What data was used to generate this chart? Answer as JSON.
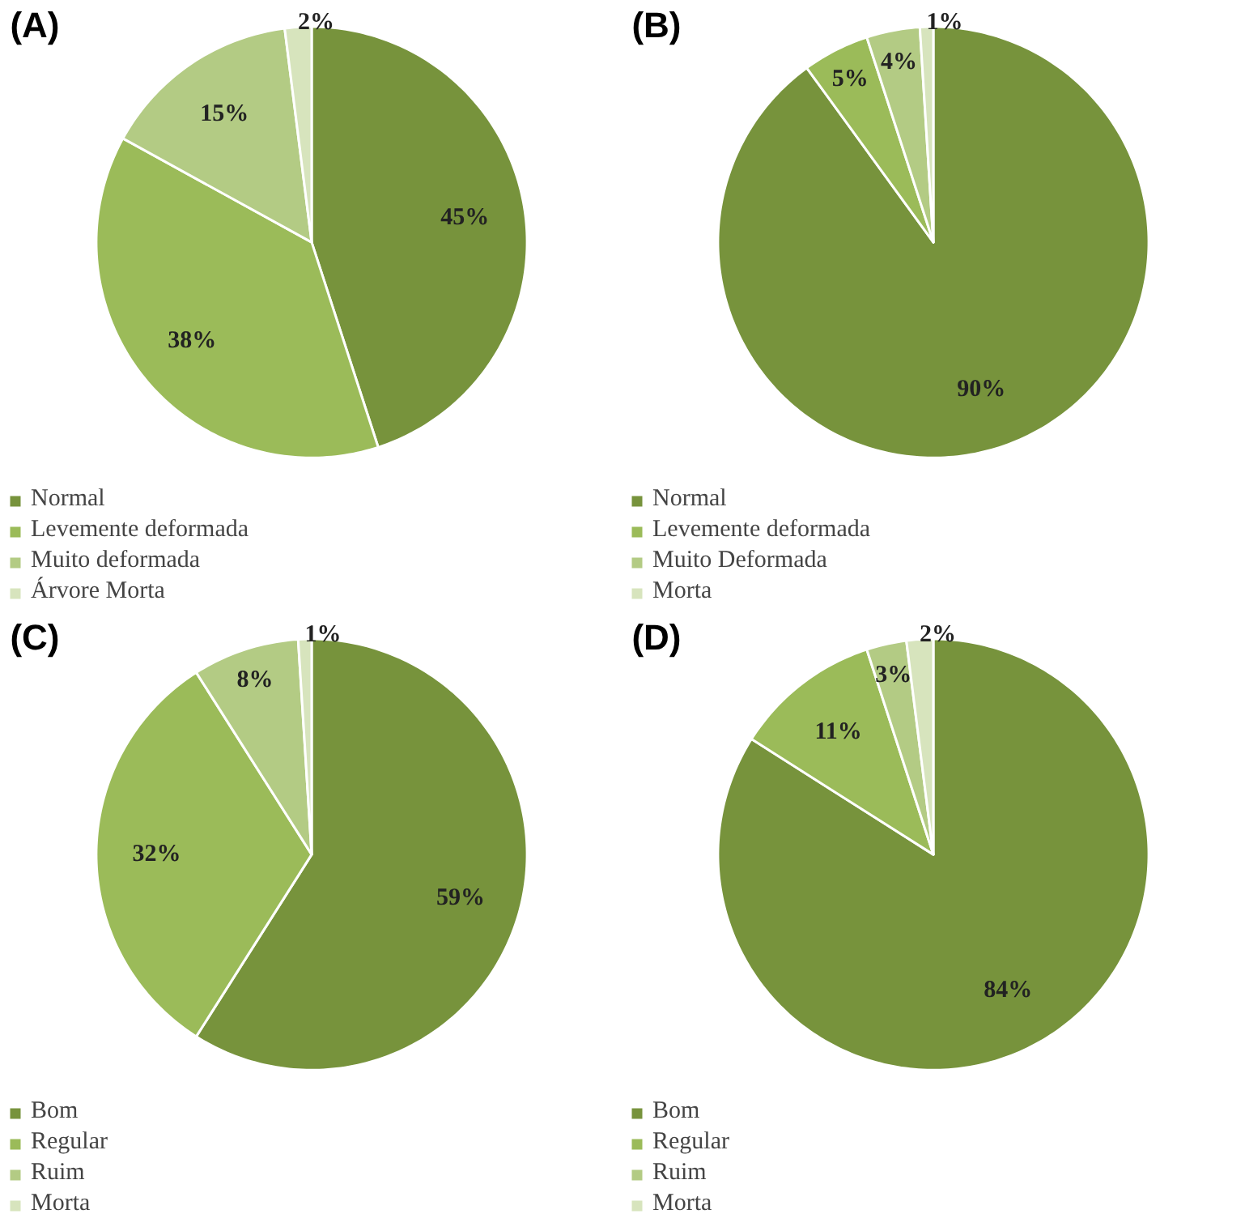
{
  "chart_data": [
    {
      "type": "pie",
      "title": "(A)",
      "categories": [
        "Normal",
        "Levemente deformada",
        "Muito deformada",
        "Árvore Morta"
      ],
      "values": [
        45,
        38,
        15,
        2
      ],
      "value_labels": [
        "45%",
        "38%",
        "15%",
        "2%"
      ],
      "colors": [
        "#77933c",
        "#9bbb59",
        "#b3cb84",
        "#d7e4bd"
      ],
      "legend": "bottom left"
    },
    {
      "type": "pie",
      "title": "(B)",
      "categories": [
        "Normal",
        "Levemente deformada",
        "Muito Deformada",
        "Morta"
      ],
      "values": [
        90,
        5,
        4,
        1
      ],
      "value_labels": [
        "90%",
        "5%",
        "4%",
        "1%"
      ],
      "colors": [
        "#77933c",
        "#9bbb59",
        "#b3cb84",
        "#d7e4bd"
      ],
      "legend": "bottom left"
    },
    {
      "type": "pie",
      "title": "(C)",
      "categories": [
        "Bom",
        "Regular",
        "Ruim",
        "Morta"
      ],
      "values": [
        59,
        32,
        8,
        1
      ],
      "value_labels": [
        "59%",
        "32%",
        "8%",
        "1%"
      ],
      "colors": [
        "#77933c",
        "#9bbb59",
        "#b3cb84",
        "#d7e4bd"
      ],
      "legend": "bottom left"
    },
    {
      "type": "pie",
      "title": "(D)",
      "categories": [
        "Bom",
        "Regular",
        "Ruim",
        "Morta"
      ],
      "values": [
        84,
        11,
        3,
        2
      ],
      "value_labels": [
        "84%",
        "11%",
        "3%",
        "2%"
      ],
      "colors": [
        "#77933c",
        "#9bbb59",
        "#b3cb84",
        "#d7e4bd"
      ],
      "legend": "bottom left"
    }
  ]
}
